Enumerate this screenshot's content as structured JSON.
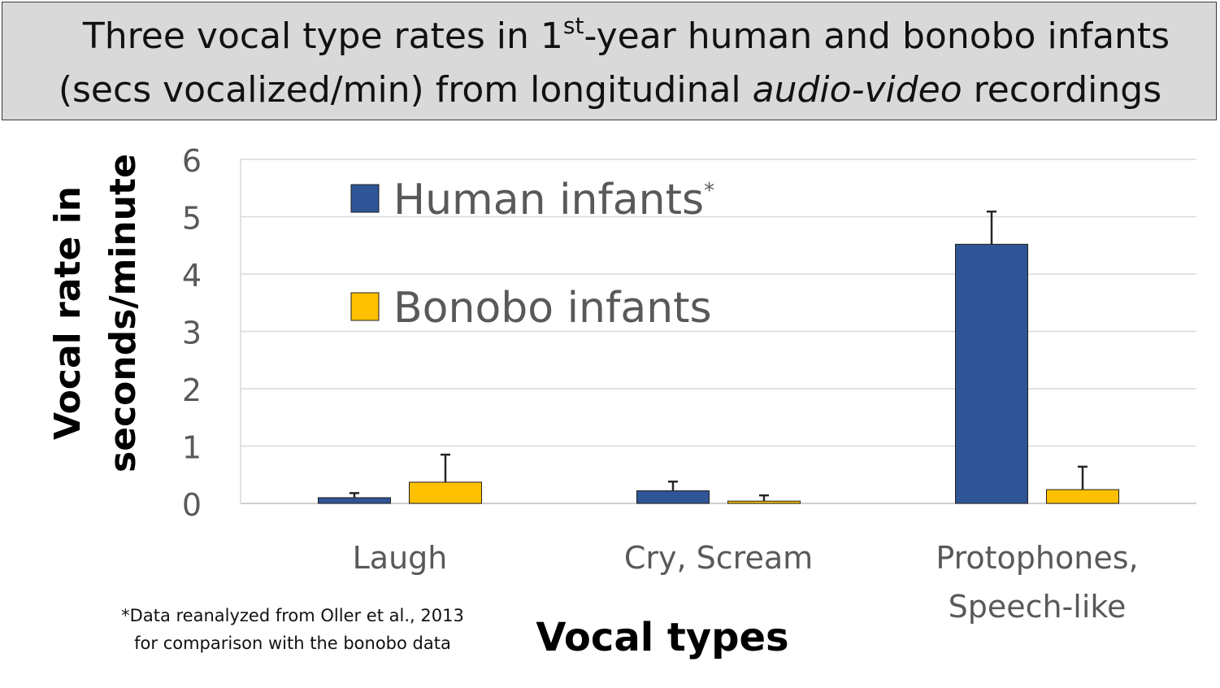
{
  "title": {
    "line1_pre": "Three vocal type rates in 1",
    "line1_sup": "st",
    "line1_post": "-year human and bonobo infants",
    "line2_pre": "(secs vocalized/min) from longitudinal ",
    "line2_italic": "audio-video",
    "line2_post": " recordings"
  },
  "footnote": {
    "line1": "*Data reanalyzed from Oller et al., 2013",
    "line2": "for comparison with the bonobo data"
  },
  "colors": {
    "human": "#2f5597",
    "bonobo": "#ffc000",
    "axis_text": "#595959",
    "grid": "#d9d9d9"
  },
  "chart_data": {
    "type": "bar",
    "xlabel": "Vocal types",
    "ylabel": [
      "Vocal rate in",
      "seconds/minute"
    ],
    "ylim": [
      0,
      6
    ],
    "yticks": [
      0,
      1,
      2,
      3,
      4,
      5,
      6
    ],
    "grid": true,
    "legend_position": "top-left, inside plot",
    "categories": [
      [
        "Laugh"
      ],
      [
        "Cry, Scream"
      ],
      [
        "Protophones,",
        "Speech-like"
      ]
    ],
    "series": [
      {
        "name": "Human infants",
        "name_suffix": "*",
        "color": "#2f5597",
        "values": [
          0.1,
          0.22,
          4.52
        ],
        "error": [
          0.08,
          0.16,
          0.57
        ]
      },
      {
        "name": "Bonobo infants",
        "name_suffix": "",
        "color": "#ffc000",
        "values": [
          0.37,
          0.04,
          0.24
        ],
        "error": [
          0.48,
          0.1,
          0.4
        ]
      }
    ]
  }
}
